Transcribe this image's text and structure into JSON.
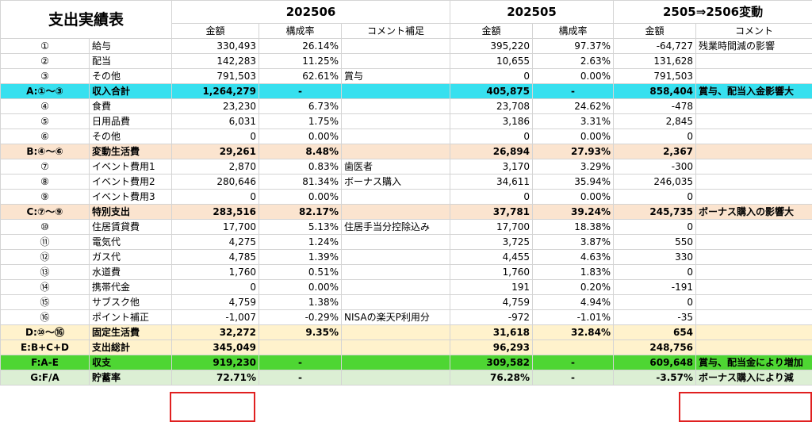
{
  "sheet": {
    "title": "支出実績表",
    "period1": "202506",
    "period2": "202505",
    "period3": "2505⇒2506変動",
    "col_amount": "金額",
    "col_ratio": "構成率",
    "col_comment_note": "コメント補足",
    "col_comment": "コメント"
  },
  "rows": [
    {
      "label": "①",
      "item": "給与",
      "a1": "330,493",
      "r1": "26.14%",
      "note": "",
      "a2": "395,220",
      "r2": "97.37%",
      "diff": "-64,727",
      "comment": "残業時間減の影響"
    },
    {
      "label": "②",
      "item": "配当",
      "a1": "142,283",
      "r1": "11.25%",
      "note": "",
      "a2": "10,655",
      "r2": "2.63%",
      "diff": "131,628",
      "comment": ""
    },
    {
      "label": "③",
      "item": "その他",
      "a1": "791,503",
      "r1": "62.61%",
      "note": "賞与",
      "a2": "0",
      "r2": "0.00%",
      "diff": "791,503",
      "comment": ""
    },
    {
      "label": "A:①〜③",
      "item": "収入合計",
      "a1": "1,264,279",
      "r1": "-",
      "note": "",
      "a2": "405,875",
      "r2": "-",
      "diff": "858,404",
      "comment": "賞与、配当入金影響大"
    },
    {
      "label": "④",
      "item": "食費",
      "a1": "23,230",
      "r1": "6.73%",
      "note": "",
      "a2": "23,708",
      "r2": "24.62%",
      "diff": "-478",
      "comment": ""
    },
    {
      "label": "⑤",
      "item": "日用品費",
      "a1": "6,031",
      "r1": "1.75%",
      "note": "",
      "a2": "3,186",
      "r2": "3.31%",
      "diff": "2,845",
      "comment": ""
    },
    {
      "label": "⑥",
      "item": "その他",
      "a1": "0",
      "r1": "0.00%",
      "note": "",
      "a2": "0",
      "r2": "0.00%",
      "diff": "0",
      "comment": ""
    },
    {
      "label": "B:④〜⑥",
      "item": "変動生活費",
      "a1": "29,261",
      "r1": "8.48%",
      "note": "",
      "a2": "26,894",
      "r2": "27.93%",
      "diff": "2,367",
      "comment": ""
    },
    {
      "label": "⑦",
      "item": "イベント費用1",
      "a1": "2,870",
      "r1": "0.83%",
      "note": "歯医者",
      "a2": "3,170",
      "r2": "3.29%",
      "diff": "-300",
      "comment": ""
    },
    {
      "label": "⑧",
      "item": "イベント費用2",
      "a1": "280,646",
      "r1": "81.34%",
      "note": "ボーナス購入",
      "a2": "34,611",
      "r2": "35.94%",
      "diff": "246,035",
      "comment": ""
    },
    {
      "label": "⑨",
      "item": "イベント費用3",
      "a1": "0",
      "r1": "0.00%",
      "note": "",
      "a2": "0",
      "r2": "0.00%",
      "diff": "0",
      "comment": ""
    },
    {
      "label": "C:⑦〜⑨",
      "item": "特別支出",
      "a1": "283,516",
      "r1": "82.17%",
      "note": "",
      "a2": "37,781",
      "r2": "39.24%",
      "diff": "245,735",
      "comment": "ボーナス購入の影響大"
    },
    {
      "label": "⑩",
      "item": "住居賃貸費",
      "a1": "17,700",
      "r1": "5.13%",
      "note": "住居手当分控除込み",
      "a2": "17,700",
      "r2": "18.38%",
      "diff": "0",
      "comment": ""
    },
    {
      "label": "⑪",
      "item": "電気代",
      "a1": "4,275",
      "r1": "1.24%",
      "note": "",
      "a2": "3,725",
      "r2": "3.87%",
      "diff": "550",
      "comment": ""
    },
    {
      "label": "⑫",
      "item": "ガス代",
      "a1": "4,785",
      "r1": "1.39%",
      "note": "",
      "a2": "4,455",
      "r2": "4.63%",
      "diff": "330",
      "comment": ""
    },
    {
      "label": "⑬",
      "item": "水道費",
      "a1": "1,760",
      "r1": "0.51%",
      "note": "",
      "a2": "1,760",
      "r2": "1.83%",
      "diff": "0",
      "comment": ""
    },
    {
      "label": "⑭",
      "item": "携帯代金",
      "a1": "0",
      "r1": "0.00%",
      "note": "",
      "a2": "191",
      "r2": "0.20%",
      "diff": "-191",
      "comment": ""
    },
    {
      "label": "⑮",
      "item": "サブスク他",
      "a1": "4,759",
      "r1": "1.38%",
      "note": "",
      "a2": "4,759",
      "r2": "4.94%",
      "diff": "0",
      "comment": ""
    },
    {
      "label": "⑯",
      "item": "ポイント補正",
      "a1": "-1,007",
      "r1": "-0.29%",
      "note": "NISAの楽天P利用分",
      "a2": "-972",
      "r2": "-1.01%",
      "diff": "-35",
      "comment": ""
    },
    {
      "label": "D:⑩〜⑯",
      "item": "固定生活費",
      "a1": "32,272",
      "r1": "9.35%",
      "note": "",
      "a2": "31,618",
      "r2": "32.84%",
      "diff": "654",
      "comment": ""
    },
    {
      "label": "E:B+C+D",
      "item": "支出総計",
      "a1": "345,049",
      "r1": "",
      "note": "",
      "a2": "96,293",
      "r2": "",
      "diff": "248,756",
      "comment": ""
    },
    {
      "label": "F:A-E",
      "item": "収支",
      "a1": "919,230",
      "r1": "-",
      "note": "",
      "a2": "309,582",
      "r2": "-",
      "diff": "609,648",
      "comment": "賞与、配当金により増加"
    },
    {
      "label": "G:F/A",
      "item": "貯蓄率",
      "a1": "72.71%",
      "r1": "-",
      "note": "",
      "a2": "76.28%",
      "r2": "-",
      "diff": "-3.57%",
      "comment": "ボーナス購入により減"
    }
  ],
  "colors": {
    "income_total": "#37e0ef",
    "subtotal": "#fbe4cf",
    "fixed_total": "#fff2cc",
    "balance": "#4ed633",
    "savings_rate": "#dcefd4",
    "highlight_border": "#e02020"
  }
}
